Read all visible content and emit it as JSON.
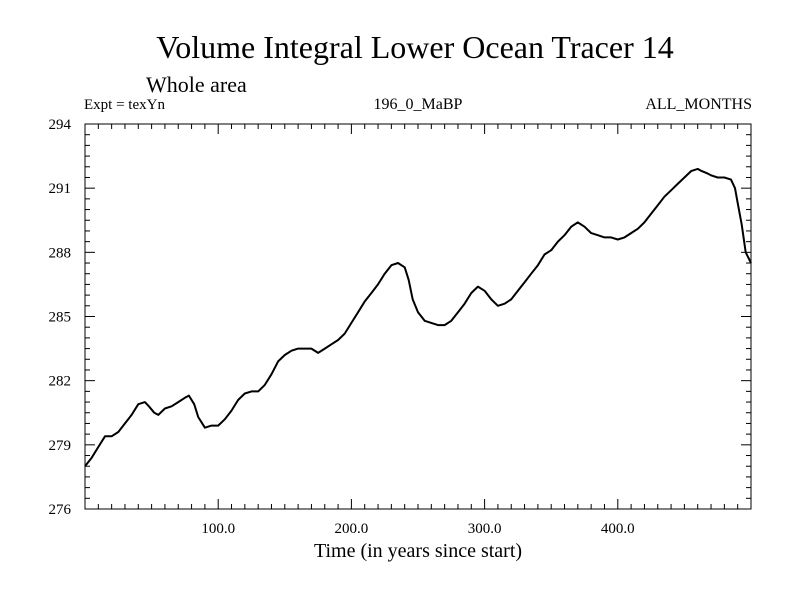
{
  "chart_data": {
    "type": "line",
    "title": "Volume Integral Lower Ocean Tracer 14",
    "subtitle": "Whole area",
    "header_left": "Expt = texYn",
    "header_center": "196_0_MaBP",
    "header_right": "ALL_MONTHS",
    "xlabel": "Time (in years since start)",
    "ylabel": "",
    "xlim": [
      0,
      500
    ],
    "ylim": [
      276,
      294
    ],
    "x_ticks": [
      100,
      200,
      300,
      400
    ],
    "x_tick_labels": [
      "100.0",
      "200.0",
      "300.0",
      "400.0"
    ],
    "y_ticks": [
      276,
      279,
      282,
      285,
      288,
      291,
      294
    ],
    "y_tick_labels": [
      "276",
      "279",
      "282",
      "285",
      "288",
      "291",
      "294"
    ],
    "grid": false,
    "series": [
      {
        "color": "#000000",
        "x": [
          0,
          5,
          10,
          15,
          20,
          25,
          30,
          35,
          40,
          45,
          48,
          52,
          55,
          60,
          65,
          70,
          75,
          78,
          82,
          85,
          90,
          95,
          100,
          105,
          110,
          115,
          120,
          125,
          130,
          135,
          140,
          145,
          150,
          155,
          160,
          165,
          170,
          175,
          180,
          185,
          190,
          195,
          200,
          205,
          210,
          215,
          220,
          225,
          230,
          235,
          240,
          243,
          246,
          250,
          255,
          260,
          265,
          270,
          275,
          280,
          285,
          290,
          295,
          300,
          305,
          310,
          315,
          320,
          325,
          330,
          335,
          340,
          345,
          350,
          355,
          360,
          365,
          370,
          375,
          380,
          385,
          390,
          395,
          400,
          405,
          410,
          415,
          420,
          425,
          430,
          435,
          440,
          445,
          450,
          455,
          460,
          463,
          467,
          470,
          475,
          480,
          485,
          488,
          490,
          493,
          496,
          500
        ],
        "values": [
          278.0,
          278.4,
          278.9,
          279.4,
          279.4,
          279.6,
          280.0,
          280.4,
          280.9,
          281.0,
          280.8,
          280.5,
          280.4,
          280.7,
          280.8,
          281.0,
          281.2,
          281.3,
          280.9,
          280.3,
          279.8,
          279.9,
          279.9,
          280.2,
          280.6,
          281.1,
          281.4,
          281.5,
          281.5,
          281.8,
          282.3,
          282.9,
          283.2,
          283.4,
          283.5,
          283.5,
          283.5,
          283.3,
          283.5,
          283.7,
          283.9,
          284.2,
          284.7,
          285.2,
          285.7,
          286.1,
          286.5,
          287.0,
          287.4,
          287.5,
          287.3,
          286.7,
          285.8,
          285.2,
          284.8,
          284.7,
          284.6,
          284.6,
          284.8,
          285.2,
          285.6,
          286.1,
          286.4,
          286.2,
          285.8,
          285.5,
          285.6,
          285.8,
          286.2,
          286.6,
          287.0,
          287.4,
          287.9,
          288.1,
          288.5,
          288.8,
          289.2,
          289.4,
          289.2,
          288.9,
          288.8,
          288.7,
          288.7,
          288.6,
          288.7,
          288.9,
          289.1,
          289.4,
          289.8,
          290.2,
          290.6,
          290.9,
          291.2,
          291.5,
          291.8,
          291.9,
          291.8,
          291.7,
          291.6,
          291.5,
          291.5,
          291.4,
          291.0,
          290.3,
          289.3,
          288.0,
          287.5
        ]
      }
    ]
  }
}
